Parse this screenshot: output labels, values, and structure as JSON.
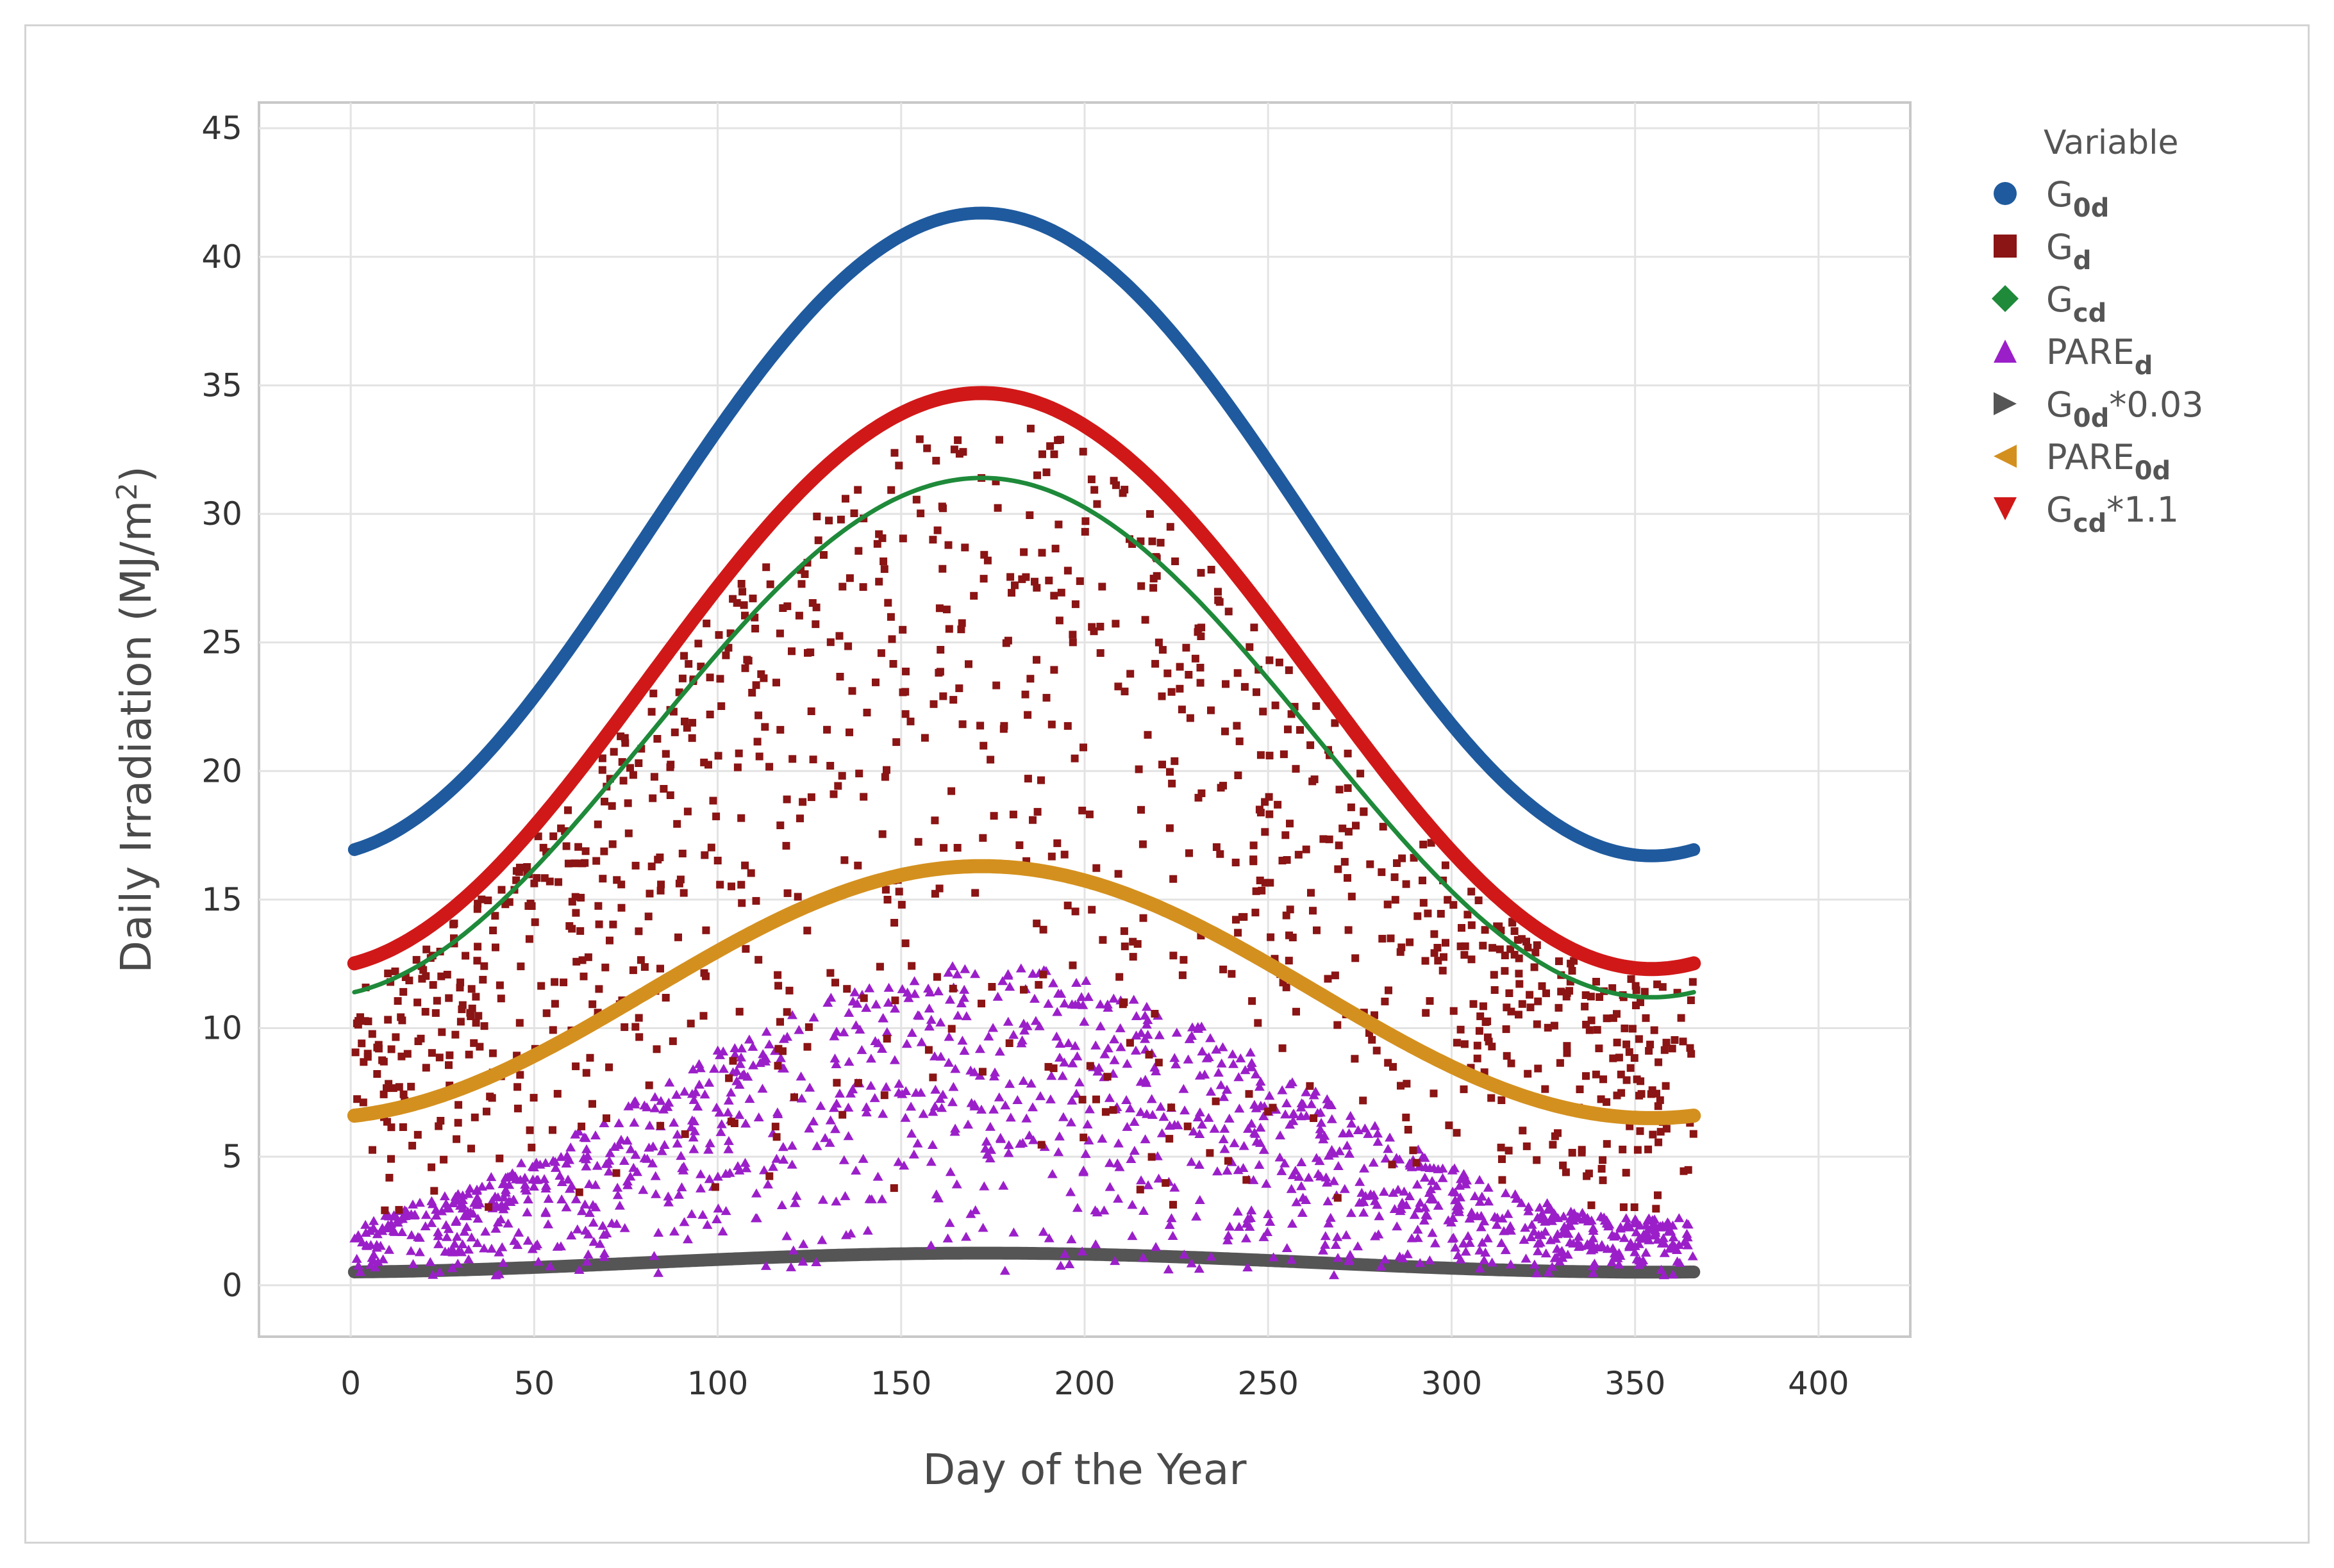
{
  "chart_data": {
    "type": "scatter",
    "xlabel": "Day of the Year",
    "ylabel_main": "Daily Irradiation (MJ/m",
    "ylabel_sup": "2",
    "ylabel_end": ")",
    "xlim": [
      -25,
      425
    ],
    "ylim": [
      -2,
      46
    ],
    "xticks": [
      0,
      50,
      100,
      150,
      200,
      250,
      300,
      350,
      400
    ],
    "yticks": [
      0,
      5,
      10,
      15,
      20,
      25,
      30,
      35,
      40,
      45
    ],
    "grid": true,
    "legend_position": "right",
    "legend_title": "Variable",
    "series": [
      {
        "key": "G0d",
        "name": "G",
        "sub": "0d",
        "suffix": "",
        "marker": "circle",
        "color": "#1f5a9e",
        "kind": "curve",
        "model": {
          "mean": 29.2,
          "amp": 12.5,
          "peak_day": 172
        }
      },
      {
        "key": "Gd",
        "name": "G",
        "sub": "d",
        "suffix": "",
        "marker": "square",
        "color": "#8b1414",
        "kind": "scatter",
        "model": {
          "mean": 17,
          "amp": 9,
          "peak_day": 175,
          "points": 1100
        }
      },
      {
        "key": "Gcd",
        "name": "G",
        "sub": "cd",
        "suffix": "",
        "marker": "diamond",
        "color": "#1e8a3a",
        "kind": "curve",
        "model": {
          "mean": 21.3,
          "amp": 10.1,
          "peak_day": 172
        }
      },
      {
        "key": "PAREd",
        "name": "PARE",
        "sub": "d",
        "suffix": "",
        "marker": "triangle-up",
        "color": "#9b1fc9",
        "kind": "scatter",
        "model": {
          "mean": 5.2,
          "amp": 3.4,
          "peak_day": 172,
          "points": 1300
        }
      },
      {
        "key": "G0d003",
        "name": "G",
        "sub": "0d",
        "suffix": "*0.03",
        "marker": "triangle-right",
        "color": "#555555",
        "kind": "curve",
        "model": {
          "mean": 0.88,
          "amp": 0.37,
          "peak_day": 172
        }
      },
      {
        "key": "PARE0d",
        "name": "PARE",
        "sub": "0d",
        "suffix": "",
        "marker": "triangle-left",
        "color": "#d4901e",
        "kind": "curve",
        "model": {
          "mean": 11.4,
          "amp": 4.9,
          "peak_day": 172
        }
      },
      {
        "key": "Gcd11",
        "name": "G",
        "sub": "cd",
        "suffix": "*1.1",
        "marker": "triangle-down",
        "color": "#d11818",
        "kind": "curve",
        "model": {
          "mean": 23.5,
          "amp": 11.2,
          "peak_day": 172
        }
      }
    ]
  }
}
